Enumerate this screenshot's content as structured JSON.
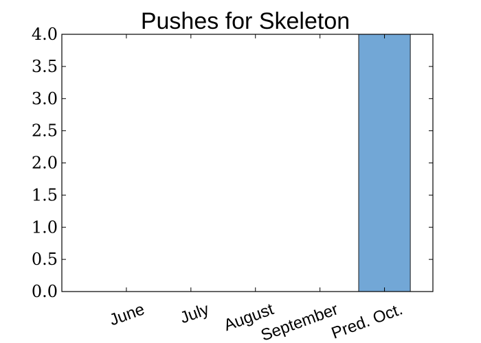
{
  "chart_data": {
    "type": "bar",
    "title": "Pushes for Skeleton",
    "xlabel": "",
    "ylabel": "",
    "categories": [
      "June",
      "July",
      "August",
      "September",
      "Pred. Oct."
    ],
    "values": [
      0,
      0,
      0,
      0,
      4
    ],
    "ylim": [
      0,
      4.0
    ],
    "yticks": [
      "0.0",
      "0.5",
      "1.0",
      "1.5",
      "2.0",
      "2.5",
      "3.0",
      "3.5",
      "4.0"
    ],
    "grid": false,
    "bar_color": "#72a7d6",
    "bar_edge_color": "#1a1a1a"
  }
}
